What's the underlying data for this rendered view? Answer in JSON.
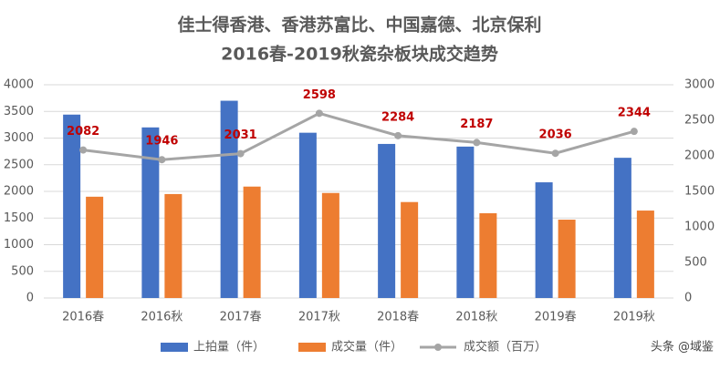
{
  "chart_data": {
    "type": "bar",
    "title": [
      "佳士得香港、香港苏富比、中国嘉德、北京保利",
      "2016春-2019秋瓷杂板块成交趋势"
    ],
    "categories": [
      "2016春",
      "2016秋",
      "2017春",
      "2017秋",
      "2018春",
      "2018秋",
      "2019春",
      "2019秋"
    ],
    "series": [
      {
        "name": "上拍量（件）",
        "color": "#4472c4",
        "type": "bar",
        "values": [
          3440,
          3200,
          3700,
          3100,
          2890,
          2840,
          2170,
          2630
        ]
      },
      {
        "name": "成交量（件）",
        "color": "#ed7d31",
        "type": "bar",
        "values": [
          1900,
          1950,
          2090,
          1970,
          1800,
          1590,
          1470,
          1640
        ]
      },
      {
        "name": "成交额（百万）",
        "color": "#a5a5a5",
        "type": "line",
        "axis": "y2",
        "label_color": "#c00000",
        "values": [
          2082,
          1946,
          2031,
          2598,
          2284,
          2187,
          2036,
          2344
        ]
      }
    ],
    "ylim": [
      0,
      4000
    ],
    "yticks": [
      0,
      500,
      1000,
      1500,
      2000,
      2500,
      3000,
      3500,
      4000
    ],
    "y2lim": [
      0,
      3000
    ],
    "y2ticks": [
      0,
      500,
      1000,
      1500,
      2000,
      2500,
      3000
    ],
    "grid": true,
    "legend": "bottom",
    "watermark": "头条 @域鉴"
  }
}
